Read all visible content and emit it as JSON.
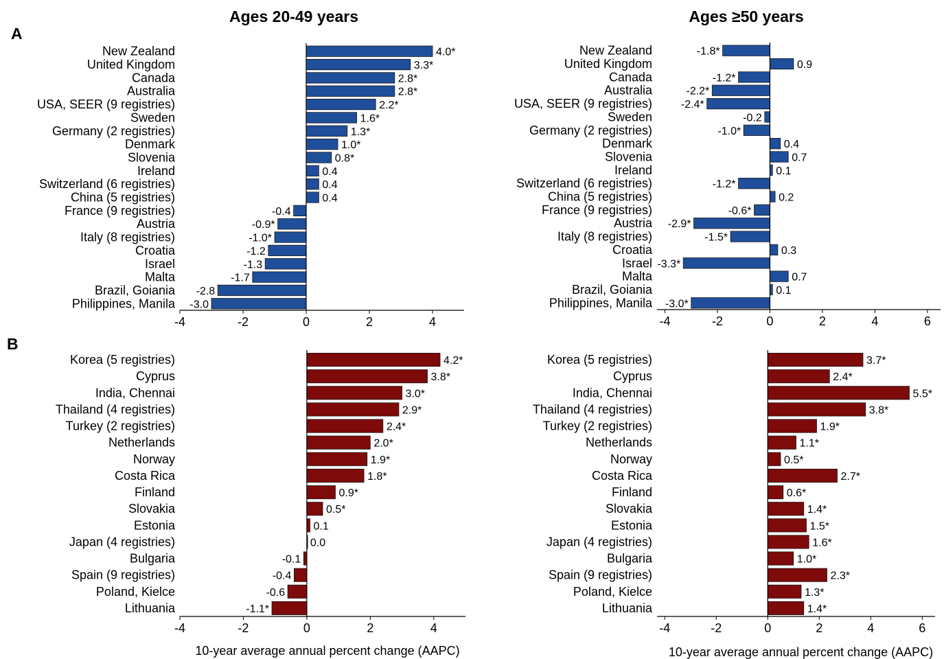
{
  "figure": {
    "column_titles": [
      "Ages 20-49 years",
      "Ages ≥50 years"
    ],
    "panel_letters": [
      "A",
      "B"
    ],
    "xlabel": "10-year average annual percent change (AAPC)",
    "colors": {
      "panel_A": "#1f4e9a",
      "panel_B": "#7f0a0a"
    }
  },
  "chart_data": [
    {
      "id": "A-left",
      "type": "bar",
      "orientation": "horizontal",
      "panel": "A",
      "title": "Ages 20-49 years",
      "xlim": [
        -4,
        5
      ],
      "xticks": [
        -4,
        -2,
        0,
        2,
        4
      ],
      "categories": [
        "New Zealand",
        "United Kingdom",
        "Canada",
        "Australia",
        "USA, SEER (9 registries)",
        "Sweden",
        "Germany (2 registries)",
        "Denmark",
        "Slovenia",
        "Ireland",
        "Switzerland (6 registries)",
        "China (5 registries)",
        "France (9 registries)",
        "Austria",
        "Italy (8 registries)",
        "Croatia",
        "Israel",
        "Malta",
        "Brazil, Goiania",
        "Philippines, Manila"
      ],
      "values": [
        4.0,
        3.3,
        2.8,
        2.8,
        2.2,
        1.6,
        1.3,
        1.0,
        0.8,
        0.4,
        0.4,
        0.4,
        -0.4,
        -0.9,
        -1.0,
        -1.2,
        -1.3,
        -1.7,
        -2.8,
        -3.0
      ],
      "labels": [
        "4.0*",
        "3.3*",
        "2.8*",
        "2.8*",
        "2.2*",
        "1.6*",
        "1.3*",
        "1.0*",
        "0.8*",
        "0.4",
        "0.4",
        "0.4",
        "-0.4",
        "-0.9*",
        "-1.0*",
        "-1.2",
        "-1.3",
        "-1.7",
        "-2.8",
        "-3.0"
      ],
      "xlabel": ""
    },
    {
      "id": "A-right",
      "type": "bar",
      "orientation": "horizontal",
      "panel": "A",
      "title": "Ages ≥50 years",
      "xlim": [
        -4.3,
        6.5
      ],
      "xticks": [
        -4,
        -2,
        0,
        2,
        4,
        6
      ],
      "categories": [
        "New Zealand",
        "United Kingdom",
        "Canada",
        "Australia",
        "USA, SEER (9 registries)",
        "Sweden",
        "Germany (2 registries)",
        "Denmark",
        "Slovenia",
        "Ireland",
        "Switzerland (6 registries)",
        "China (5 registries)",
        "France (9 registries)",
        "Austria",
        "Italy (8 registries)",
        "Croatia",
        "Israel",
        "Malta",
        "Brazil, Goiania",
        "Philippines, Manila"
      ],
      "values": [
        -1.8,
        0.9,
        -1.2,
        -2.2,
        -2.4,
        -0.2,
        -1.0,
        0.4,
        0.7,
        0.1,
        -1.2,
        0.2,
        -0.6,
        -2.9,
        -1.5,
        0.3,
        -3.3,
        0.7,
        0.1,
        -3.0
      ],
      "labels": [
        "-1.8*",
        "0.9",
        "-1.2*",
        "-2.2*",
        "-2.4*",
        "-0.2",
        "-1.0*",
        "0.4",
        "0.7",
        "0.1",
        "-1.2*",
        "0.2",
        "-0.6*",
        "-2.9*",
        "-1.5*",
        "0.3",
        "-3.3*",
        "0.7",
        "0.1",
        "-3.0*"
      ],
      "xlabel": ""
    },
    {
      "id": "B-left",
      "type": "bar",
      "orientation": "horizontal",
      "panel": "B",
      "title": "",
      "xlim": [
        -4,
        5
      ],
      "xticks": [
        -4,
        -2,
        0,
        2,
        4
      ],
      "categories": [
        "Korea (5 registries)",
        "Cyprus",
        "India, Chennai",
        "Thailand (4 registries)",
        "Turkey (2 registries)",
        "Netherlands",
        "Norway",
        "Costa Rica",
        "Finland",
        "Slovakia",
        "Estonia",
        "Japan (4 registries)",
        "Bulgaria",
        "Spain (9 registries)",
        "Poland, Kielce",
        "Lithuania"
      ],
      "values": [
        4.2,
        3.8,
        3.0,
        2.9,
        2.4,
        2.0,
        1.9,
        1.8,
        0.9,
        0.5,
        0.1,
        0.0,
        -0.1,
        -0.4,
        -0.6,
        -1.1
      ],
      "labels": [
        "4.2*",
        "3.8*",
        "3.0*",
        "2.9*",
        "2.4*",
        "2.0*",
        "1.9*",
        "1.8*",
        "0.9*",
        "0.5*",
        "0.1",
        "0.0",
        "-0.1",
        "-0.4",
        "-0.6",
        "-1.1*"
      ],
      "xlabel": "10-year average annual percent change (AAPC)"
    },
    {
      "id": "B-right",
      "type": "bar",
      "orientation": "horizontal",
      "panel": "B",
      "title": "",
      "xlim": [
        -4.3,
        6.5
      ],
      "xticks": [
        -4,
        -2,
        0,
        2,
        4,
        6
      ],
      "categories": [
        "Korea (5 registries)",
        "Cyprus",
        "India, Chennai",
        "Thailand (4 registries)",
        "Turkey (2 registries)",
        "Netherlands",
        "Norway",
        "Costa Rica",
        "Finland",
        "Slovakia",
        "Estonia",
        "Japan (4 registries)",
        "Bulgaria",
        "Spain (9 registries)",
        "Poland, Kielce",
        "Lithuania"
      ],
      "values": [
        3.7,
        2.4,
        5.5,
        3.8,
        1.9,
        1.1,
        0.5,
        2.7,
        0.6,
        1.4,
        1.5,
        1.6,
        1.0,
        2.3,
        1.3,
        1.4
      ],
      "labels": [
        "3.7*",
        "2.4*",
        "5.5*",
        "3.8*",
        "1.9*",
        "1.1*",
        "0.5*",
        "2.7*",
        "0.6*",
        "1.4*",
        "1.5*",
        "1.6*",
        "1.0*",
        "2.3*",
        "1.3*",
        "1.4*"
      ],
      "xlabel": "10-year average annual percent change (AAPC)"
    }
  ]
}
